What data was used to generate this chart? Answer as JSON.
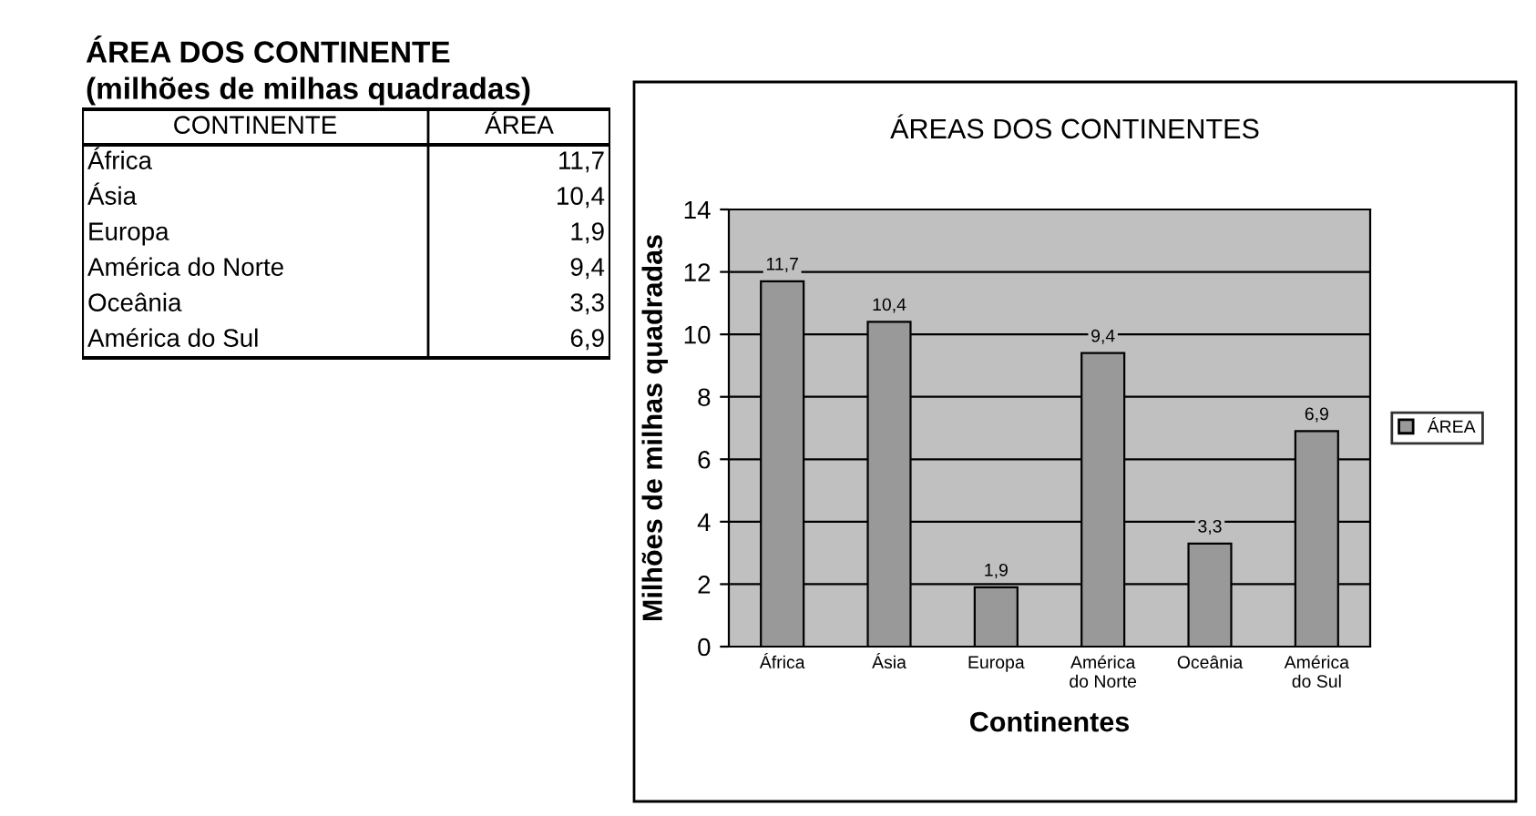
{
  "chart_data": [
    {
      "type": "other",
      "title": "ÁREA DOS CONTINENTE",
      "subtitle": "(milhões de milhas quadradas)",
      "annotations": [
        "CONTINENTE",
        "ÁREA",
        "África",
        "11,7",
        "Ásia",
        "10,4",
        "Europa",
        "1,9",
        "América do Norte",
        "9,4",
        "Oceânia",
        "3,3",
        "América do Sul",
        "6,9"
      ]
    },
    {
      "type": "bar",
      "title": "ÁREAS DOS CONTINENTES",
      "xlabel": "Continentes",
      "ylabel": "Milhões de milhas quadradas",
      "categories": [
        "África",
        "Ásia",
        "Europa",
        "América\ndo Norte",
        "Oceânia",
        "América\ndo Sul"
      ],
      "series": [
        {
          "name": "ÁREA",
          "color": "#999999",
          "values": [
            11.7,
            10.4,
            1.9,
            9.4,
            3.3,
            6.9
          ],
          "value_labels": [
            "11,7",
            "10,4",
            "1,9",
            "9,4",
            "3,3",
            "6,9"
          ]
        }
      ],
      "ylim": [
        0,
        14
      ],
      "yticks": [
        0,
        2,
        4,
        6,
        8,
        10,
        12,
        14
      ],
      "grid": "y",
      "legend": "right"
    }
  ]
}
